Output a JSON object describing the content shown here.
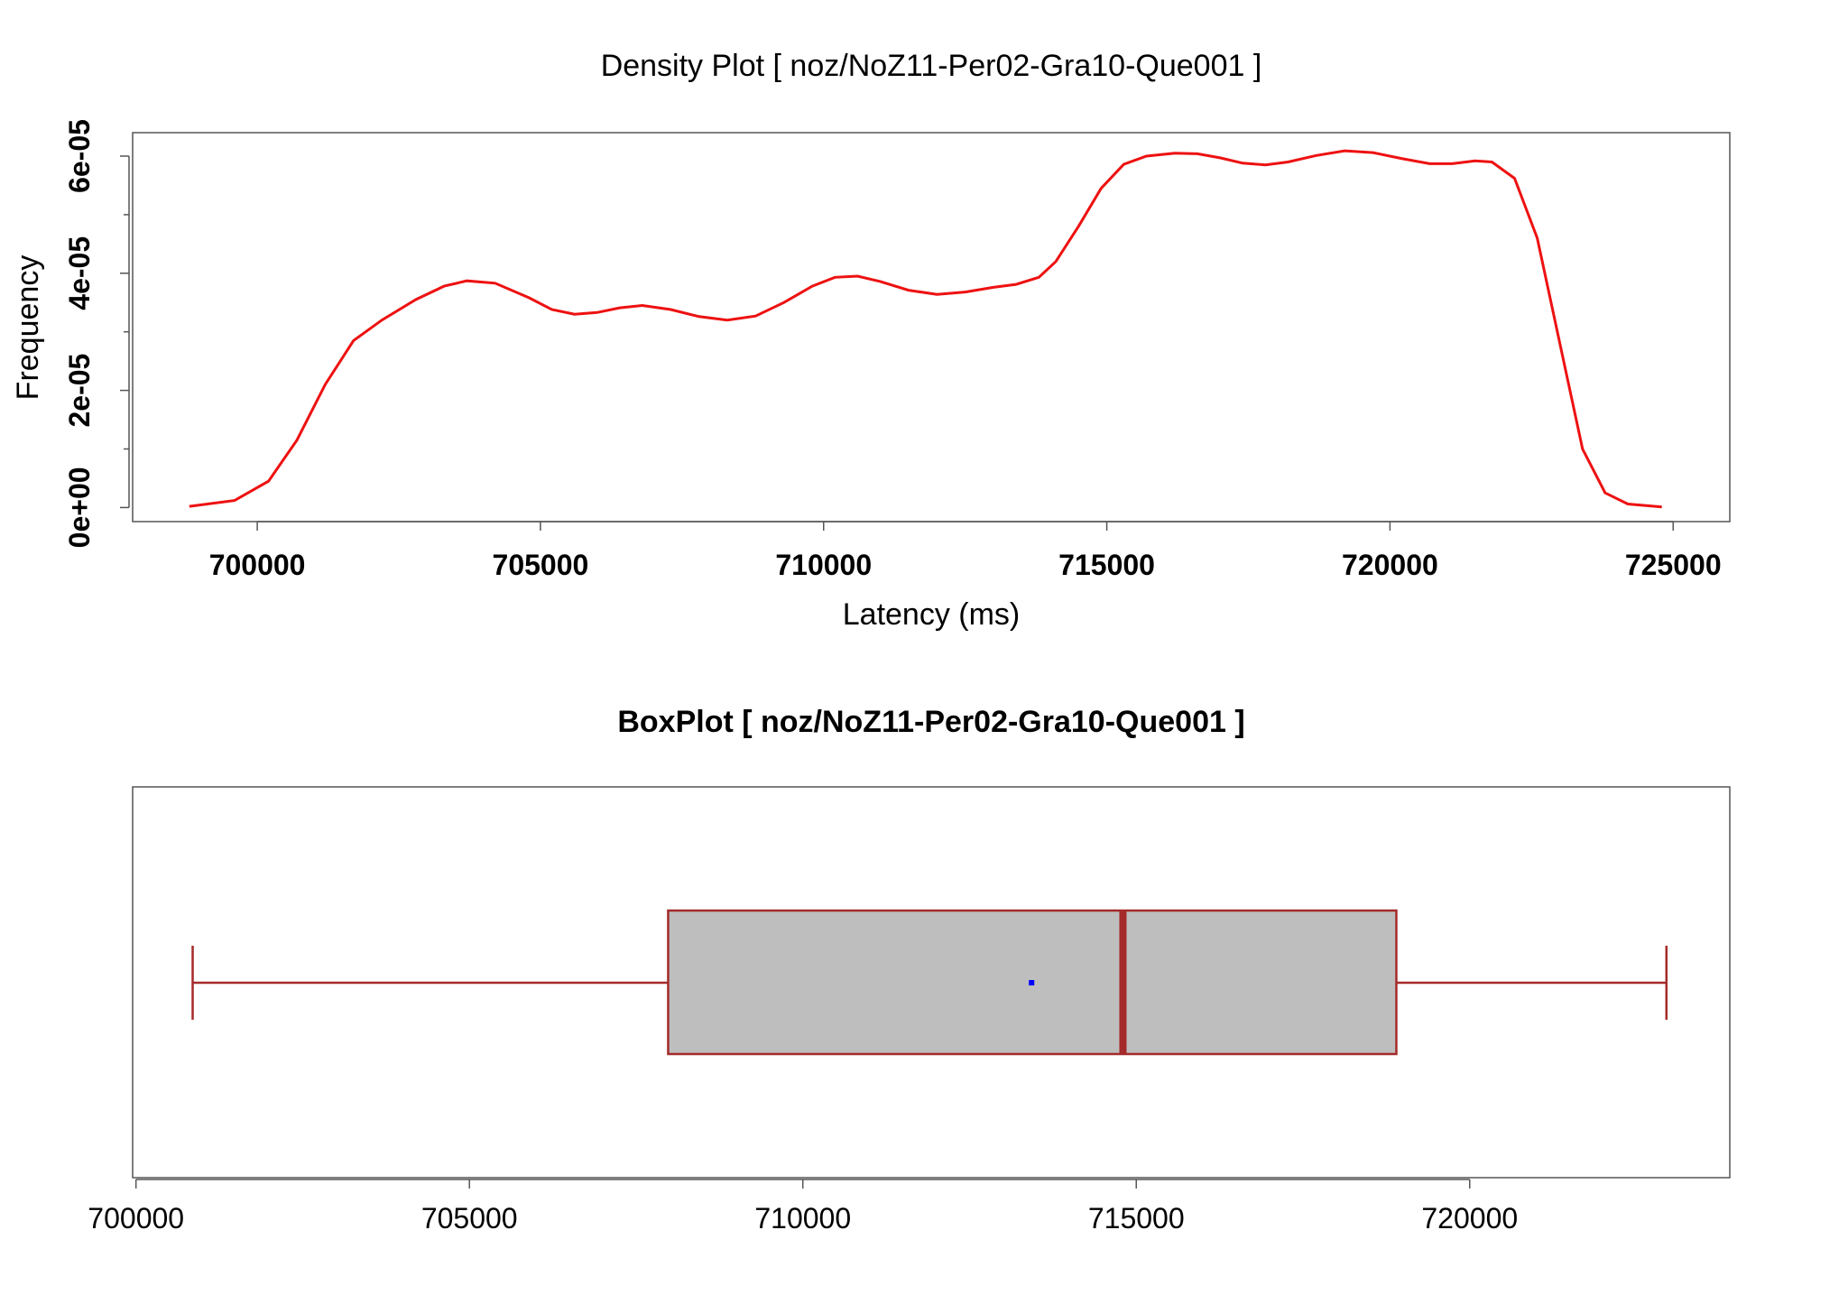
{
  "chart_data": [
    {
      "type": "line",
      "title": "Density Plot [ noz/NoZ11-Per02-Gra10-Que001 ]",
      "xlabel": "Latency (ms)",
      "ylabel": "Frequency",
      "xlim": [
        697800,
        726000
      ],
      "ylim": [
        -2.4e-06,
        6.4e-05
      ],
      "x_ticks": [
        700000,
        705000,
        710000,
        715000,
        720000,
        725000
      ],
      "x_tick_labels": [
        "700000",
        "705000",
        "710000",
        "715000",
        "720000",
        "725000"
      ],
      "y_ticks": [
        0,
        2e-05,
        4e-05,
        6e-05
      ],
      "y_tick_labels": [
        "0e+00",
        "2e-05",
        "4e-05",
        "6e-05"
      ],
      "y_minor_ticks": [
        1e-05,
        3e-05,
        5e-05
      ],
      "grid": false,
      "legend": "none",
      "colors": {
        "line": "#ee1111",
        "frame": "#555555"
      },
      "series": [
        {
          "x": [
            698800,
            699600,
            700200,
            700700,
            701200,
            701700,
            702200,
            702800,
            703300,
            703700,
            704200,
            704800,
            705200,
            705600,
            706000,
            706400,
            706800,
            707300,
            707800,
            708300,
            708800,
            709300,
            709800,
            710200,
            710600,
            711000,
            711500,
            712000,
            712500,
            713000,
            713400,
            713800,
            714100,
            714500,
            714900,
            715300,
            715700,
            716200,
            716600,
            717000,
            717400,
            717800,
            718200,
            718700,
            719200,
            719700,
            720200,
            720700,
            721100,
            721500,
            721800,
            722200,
            722600,
            723000,
            723400,
            723800,
            724200,
            724800
          ],
          "y": [
            2e-07,
            1.2e-06,
            4.5e-06,
            1.15e-05,
            2.1e-05,
            2.85e-05,
            3.2e-05,
            3.55e-05,
            3.78e-05,
            3.87e-05,
            3.83e-05,
            3.58e-05,
            3.38e-05,
            3.3e-05,
            3.33e-05,
            3.41e-05,
            3.45e-05,
            3.38e-05,
            3.26e-05,
            3.2e-05,
            3.27e-05,
            3.5e-05,
            3.78e-05,
            3.93e-05,
            3.95e-05,
            3.86e-05,
            3.71e-05,
            3.64e-05,
            3.68e-05,
            3.76e-05,
            3.81e-05,
            3.93e-05,
            4.2e-05,
            4.8e-05,
            5.45e-05,
            5.86e-05,
            6e-05,
            6.05e-05,
            6.04e-05,
            5.97e-05,
            5.88e-05,
            5.85e-05,
            5.9e-05,
            6.01e-05,
            6.09e-05,
            6.06e-05,
            5.96e-05,
            5.87e-05,
            5.87e-05,
            5.92e-05,
            5.9e-05,
            5.62e-05,
            4.6e-05,
            2.8e-05,
            1e-05,
            2.5e-06,
            6e-07,
            1e-07
          ]
        }
      ]
    },
    {
      "type": "box",
      "title": "BoxPlot [ noz/NoZ11-Per02-Gra10-Que001 ]",
      "xlabel": "",
      "ylabel": "",
      "xlim": [
        699950,
        723900
      ],
      "x_ticks": [
        700000,
        705000,
        710000,
        715000,
        720000
      ],
      "x_tick_labels": [
        "700000",
        "705000",
        "710000",
        "715000",
        "720000"
      ],
      "whisker_low": 700850,
      "q1": 707980,
      "median": 714800,
      "q3": 718900,
      "whisker_high": 722950,
      "mean": 713430,
      "grid": false,
      "legend": "none",
      "colors": {
        "box_fill": "#bebebe",
        "box_stroke": "#a52a2a",
        "median": "#a52a2a",
        "mean": "#0000ff",
        "frame": "#555555"
      }
    }
  ]
}
